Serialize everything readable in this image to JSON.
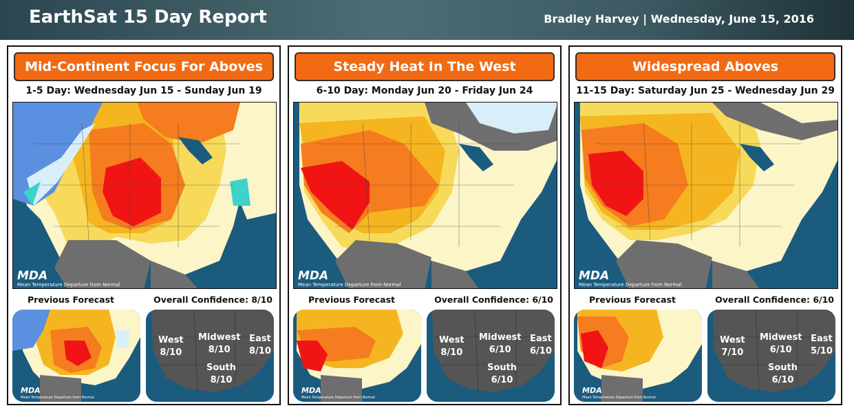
{
  "header": {
    "title": "EarthSat 15 Day Report",
    "byline": "Bradley Harvey | Wednesday, June 15, 2016"
  },
  "colors": {
    "banner": "#f26a14",
    "warm_red": "#f01414",
    "warm_orange": "#f57c1f",
    "warm_amber": "#f5b520",
    "warm_yellow": "#f7da5a",
    "warm_pale": "#fbf5c8",
    "cool_blue": "#5b8fe0",
    "cool_teal": "#3cd3c8",
    "cool_pale": "#d8eef8",
    "neutral_gray": "#6e6e6e",
    "ocean": "#1b5b7e"
  },
  "logo": {
    "brand": "MDA",
    "caption": "Mean Temperature Departure from Normal"
  },
  "labels": {
    "previous_forecast": "Previous Forecast",
    "overall_confidence_prefix": "Overall Confidence: "
  },
  "panels": [
    {
      "headline": "Mid-Continent Focus For Aboves",
      "range": "1-5 Day: Wednesday Jun 15 - Sunday Jun 19",
      "overall_confidence": "Overall Confidence: 8/10",
      "regions": {
        "west_label": "West",
        "west": "8/10",
        "midwest_label": "Midwest",
        "midwest": "8/10",
        "east_label": "East",
        "east": "8/10",
        "south_label": "South",
        "south": "8/10"
      }
    },
    {
      "headline": "Steady Heat In The West",
      "range": "6-10 Day: Monday Jun 20 - Friday Jun 24",
      "overall_confidence": "Overall Confidence: 6/10",
      "regions": {
        "west_label": "West",
        "west": "8/10",
        "midwest_label": "Midwest",
        "midwest": "6/10",
        "east_label": "East",
        "east": "6/10",
        "south_label": "South",
        "south": "6/10"
      }
    },
    {
      "headline": "Widespread Aboves",
      "range": "11-15 Day: Saturday Jun 25 - Wednesday Jun 29",
      "overall_confidence": "Overall Confidence: 6/10",
      "regions": {
        "west_label": "West",
        "west": "7/10",
        "midwest_label": "Midwest",
        "midwest": "6/10",
        "east_label": "East",
        "east": "5/10",
        "south_label": "South",
        "south": "6/10"
      }
    }
  ]
}
